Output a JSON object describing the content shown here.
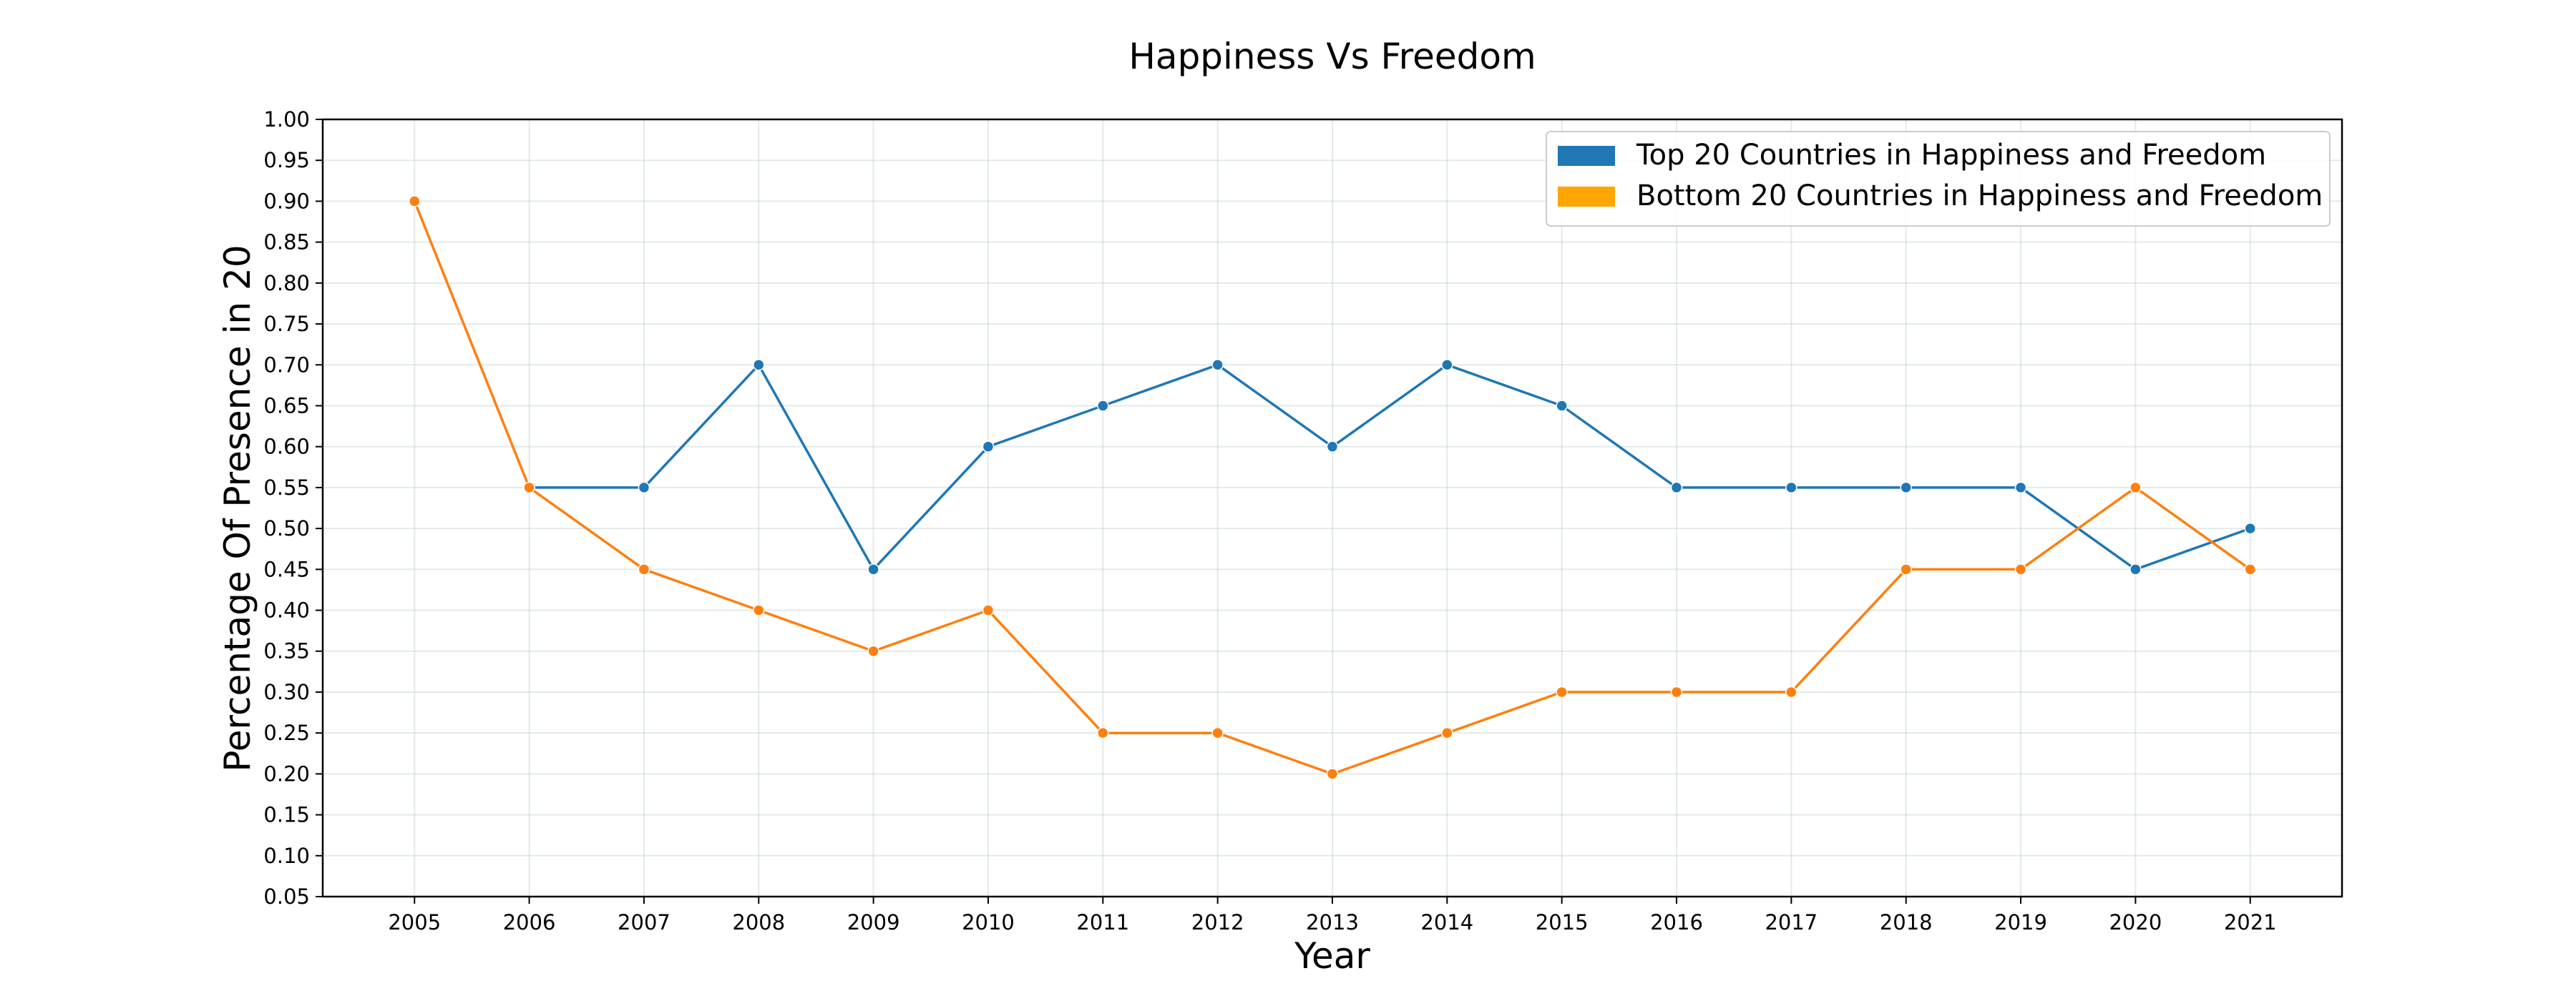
{
  "chart_data": {
    "type": "line",
    "title": "Happiness Vs Freedom",
    "xlabel": "Year",
    "ylabel": "Percentage Of Presence in 20",
    "x": [
      2005,
      2006,
      2007,
      2008,
      2009,
      2010,
      2011,
      2012,
      2013,
      2014,
      2015,
      2016,
      2017,
      2018,
      2019,
      2020,
      2021
    ],
    "x_tick_labels": [
      "2005",
      "2006",
      "2007",
      "2008",
      "2009",
      "2010",
      "2011",
      "2012",
      "2013",
      "2014",
      "2015",
      "2016",
      "2017",
      "2018",
      "2019",
      "2020",
      "2021"
    ],
    "y_tick_labels": [
      "0.05",
      "0.10",
      "0.15",
      "0.20",
      "0.25",
      "0.30",
      "0.35",
      "0.40",
      "0.45",
      "0.50",
      "0.55",
      "0.60",
      "0.65",
      "0.70",
      "0.75",
      "0.80",
      "0.85",
      "0.90",
      "0.95",
      "1.00"
    ],
    "xlim": [
      2004.2,
      2021.8
    ],
    "ylim": [
      0.05,
      1.0
    ],
    "y_ticks": [
      0.05,
      0.1,
      0.15,
      0.2,
      0.25,
      0.3,
      0.35,
      0.4,
      0.45,
      0.5,
      0.55,
      0.6,
      0.65,
      0.7,
      0.75,
      0.8,
      0.85,
      0.9,
      0.95,
      1.0
    ],
    "grid": true,
    "legend_position": "top-right",
    "series": [
      {
        "name": "Top 20 Countries in Happiness and Freedom",
        "color": "#1f77b4",
        "legend_color": "#1f77b4",
        "x": [
          2006,
          2007,
          2008,
          2009,
          2010,
          2011,
          2012,
          2013,
          2014,
          2015,
          2016,
          2017,
          2018,
          2019,
          2020,
          2021
        ],
        "values": [
          0.55,
          0.55,
          0.7,
          0.45,
          0.6,
          0.65,
          0.7,
          0.6,
          0.7,
          0.65,
          0.55,
          0.55,
          0.55,
          0.55,
          0.45,
          0.5
        ]
      },
      {
        "name": "Bottom 20 Countries in Happiness and Freedom",
        "color": "#ff7f0e",
        "legend_color": "#ffa500",
        "x": [
          2005,
          2006,
          2007,
          2008,
          2009,
          2010,
          2011,
          2012,
          2013,
          2014,
          2015,
          2016,
          2017,
          2018,
          2019,
          2020,
          2021
        ],
        "values": [
          0.9,
          0.55,
          0.45,
          0.4,
          0.35,
          0.4,
          0.25,
          0.25,
          0.2,
          0.25,
          0.3,
          0.3,
          0.3,
          0.45,
          0.45,
          0.55,
          0.45
        ]
      }
    ]
  }
}
